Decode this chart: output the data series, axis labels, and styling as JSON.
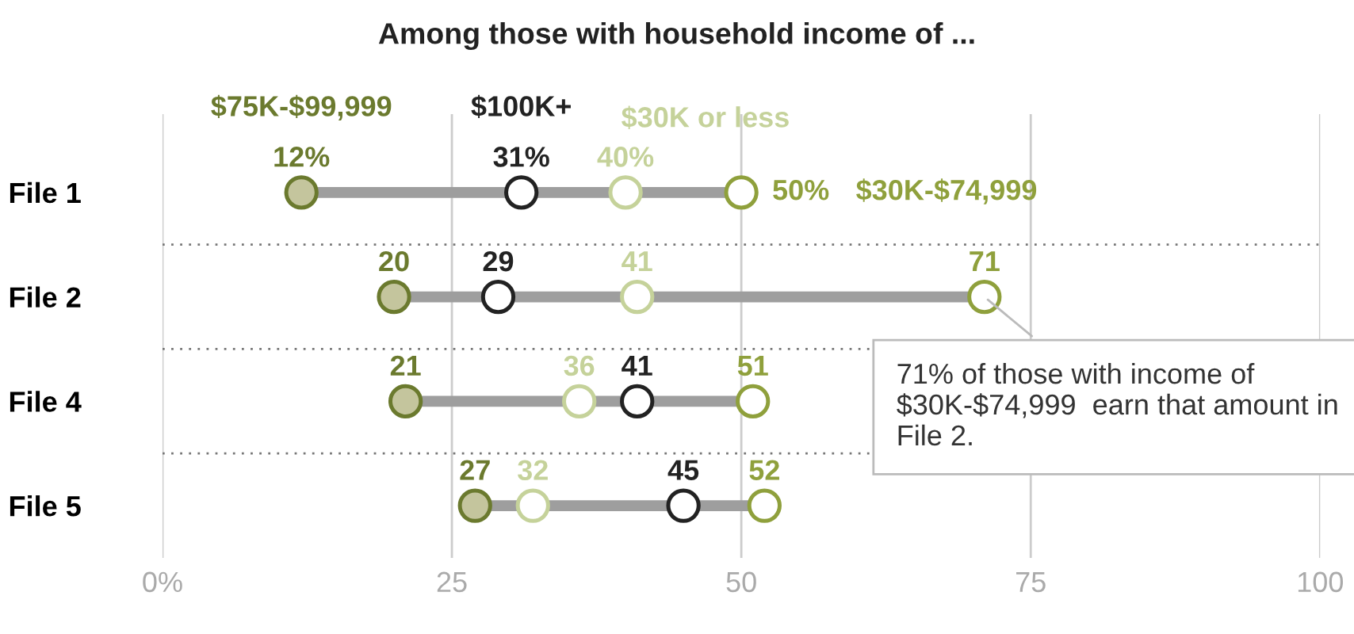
{
  "chart_data": {
    "type": "scatter",
    "title": "Among those with household income of ...",
    "categories": [
      "File 1",
      "File 2",
      "File 4",
      "File 5"
    ],
    "orientation": "horizontal",
    "series": [
      {
        "name": "$75K-$99,999",
        "color": "#6b7a2e",
        "values": [
          12,
          20,
          21,
          27
        ],
        "value_labels": [
          "12%",
          "20",
          "21",
          "27"
        ]
      },
      {
        "name": "$100K+",
        "color": "#222222",
        "values": [
          31,
          29,
          41,
          45
        ],
        "value_labels": [
          "31%",
          "29",
          "41",
          "45"
        ]
      },
      {
        "name": "$30K or less",
        "color": "#c5d29a",
        "values": [
          40,
          41,
          36,
          32
        ],
        "value_labels": [
          "40%",
          "41",
          "36",
          "32"
        ]
      },
      {
        "name": "$30K-$74,999",
        "color": "#8fa03c",
        "values": [
          50,
          71,
          51,
          52
        ],
        "value_labels": [
          "50%",
          "71",
          "51",
          "52"
        ]
      }
    ],
    "xlim": [
      0,
      100
    ],
    "xticks": [
      {
        "value": 0,
        "label": "0%"
      },
      25,
      50,
      75,
      100
    ],
    "grid": "x",
    "legend": false,
    "marker": "circle",
    "annotations": [
      {
        "text": "71% of those with income of $30K-$74,999  earn that amount in File 2.",
        "x": 71,
        "y": "File 2"
      }
    ]
  }
}
